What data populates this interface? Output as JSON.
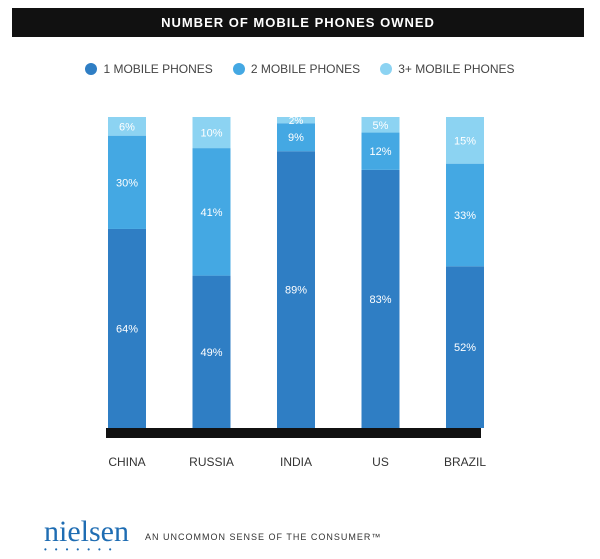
{
  "colors": {
    "series_1": "#2f7ec4",
    "series_2": "#44a8e3",
    "series_3": "#8cd3f2",
    "baseline": "#111111",
    "title_bg": "#111111",
    "brand": "#1f6db3"
  },
  "chart_data": {
    "type": "bar",
    "stacked": true,
    "title": "NUMBER OF MOBILE PHONES OWNED",
    "categories": [
      "CHINA",
      "RUSSIA",
      "INDIA",
      "US",
      "BRAZIL"
    ],
    "series": [
      {
        "name": "1 MOBILE PHONES",
        "values": [
          64,
          49,
          89,
          83,
          52
        ],
        "labels": [
          "64%",
          "49%",
          "89%",
          "83%",
          "52%"
        ]
      },
      {
        "name": "2 MOBILE PHONES",
        "values": [
          30,
          41,
          9,
          12,
          33
        ],
        "labels": [
          "30%",
          "41%",
          "9%",
          "12%",
          "33%"
        ]
      },
      {
        "name": "3+ MOBILE PHONES",
        "values": [
          6,
          10,
          2,
          5,
          15
        ],
        "labels": [
          "6%",
          "10%",
          "2%",
          "5%",
          "15%"
        ]
      }
    ],
    "ylim": [
      0,
      100
    ],
    "grid": false,
    "legend": "top-center"
  },
  "footer": {
    "brand": "nielsen",
    "tagline": "AN UNCOMMON SENSE OF THE CONSUMER™"
  }
}
